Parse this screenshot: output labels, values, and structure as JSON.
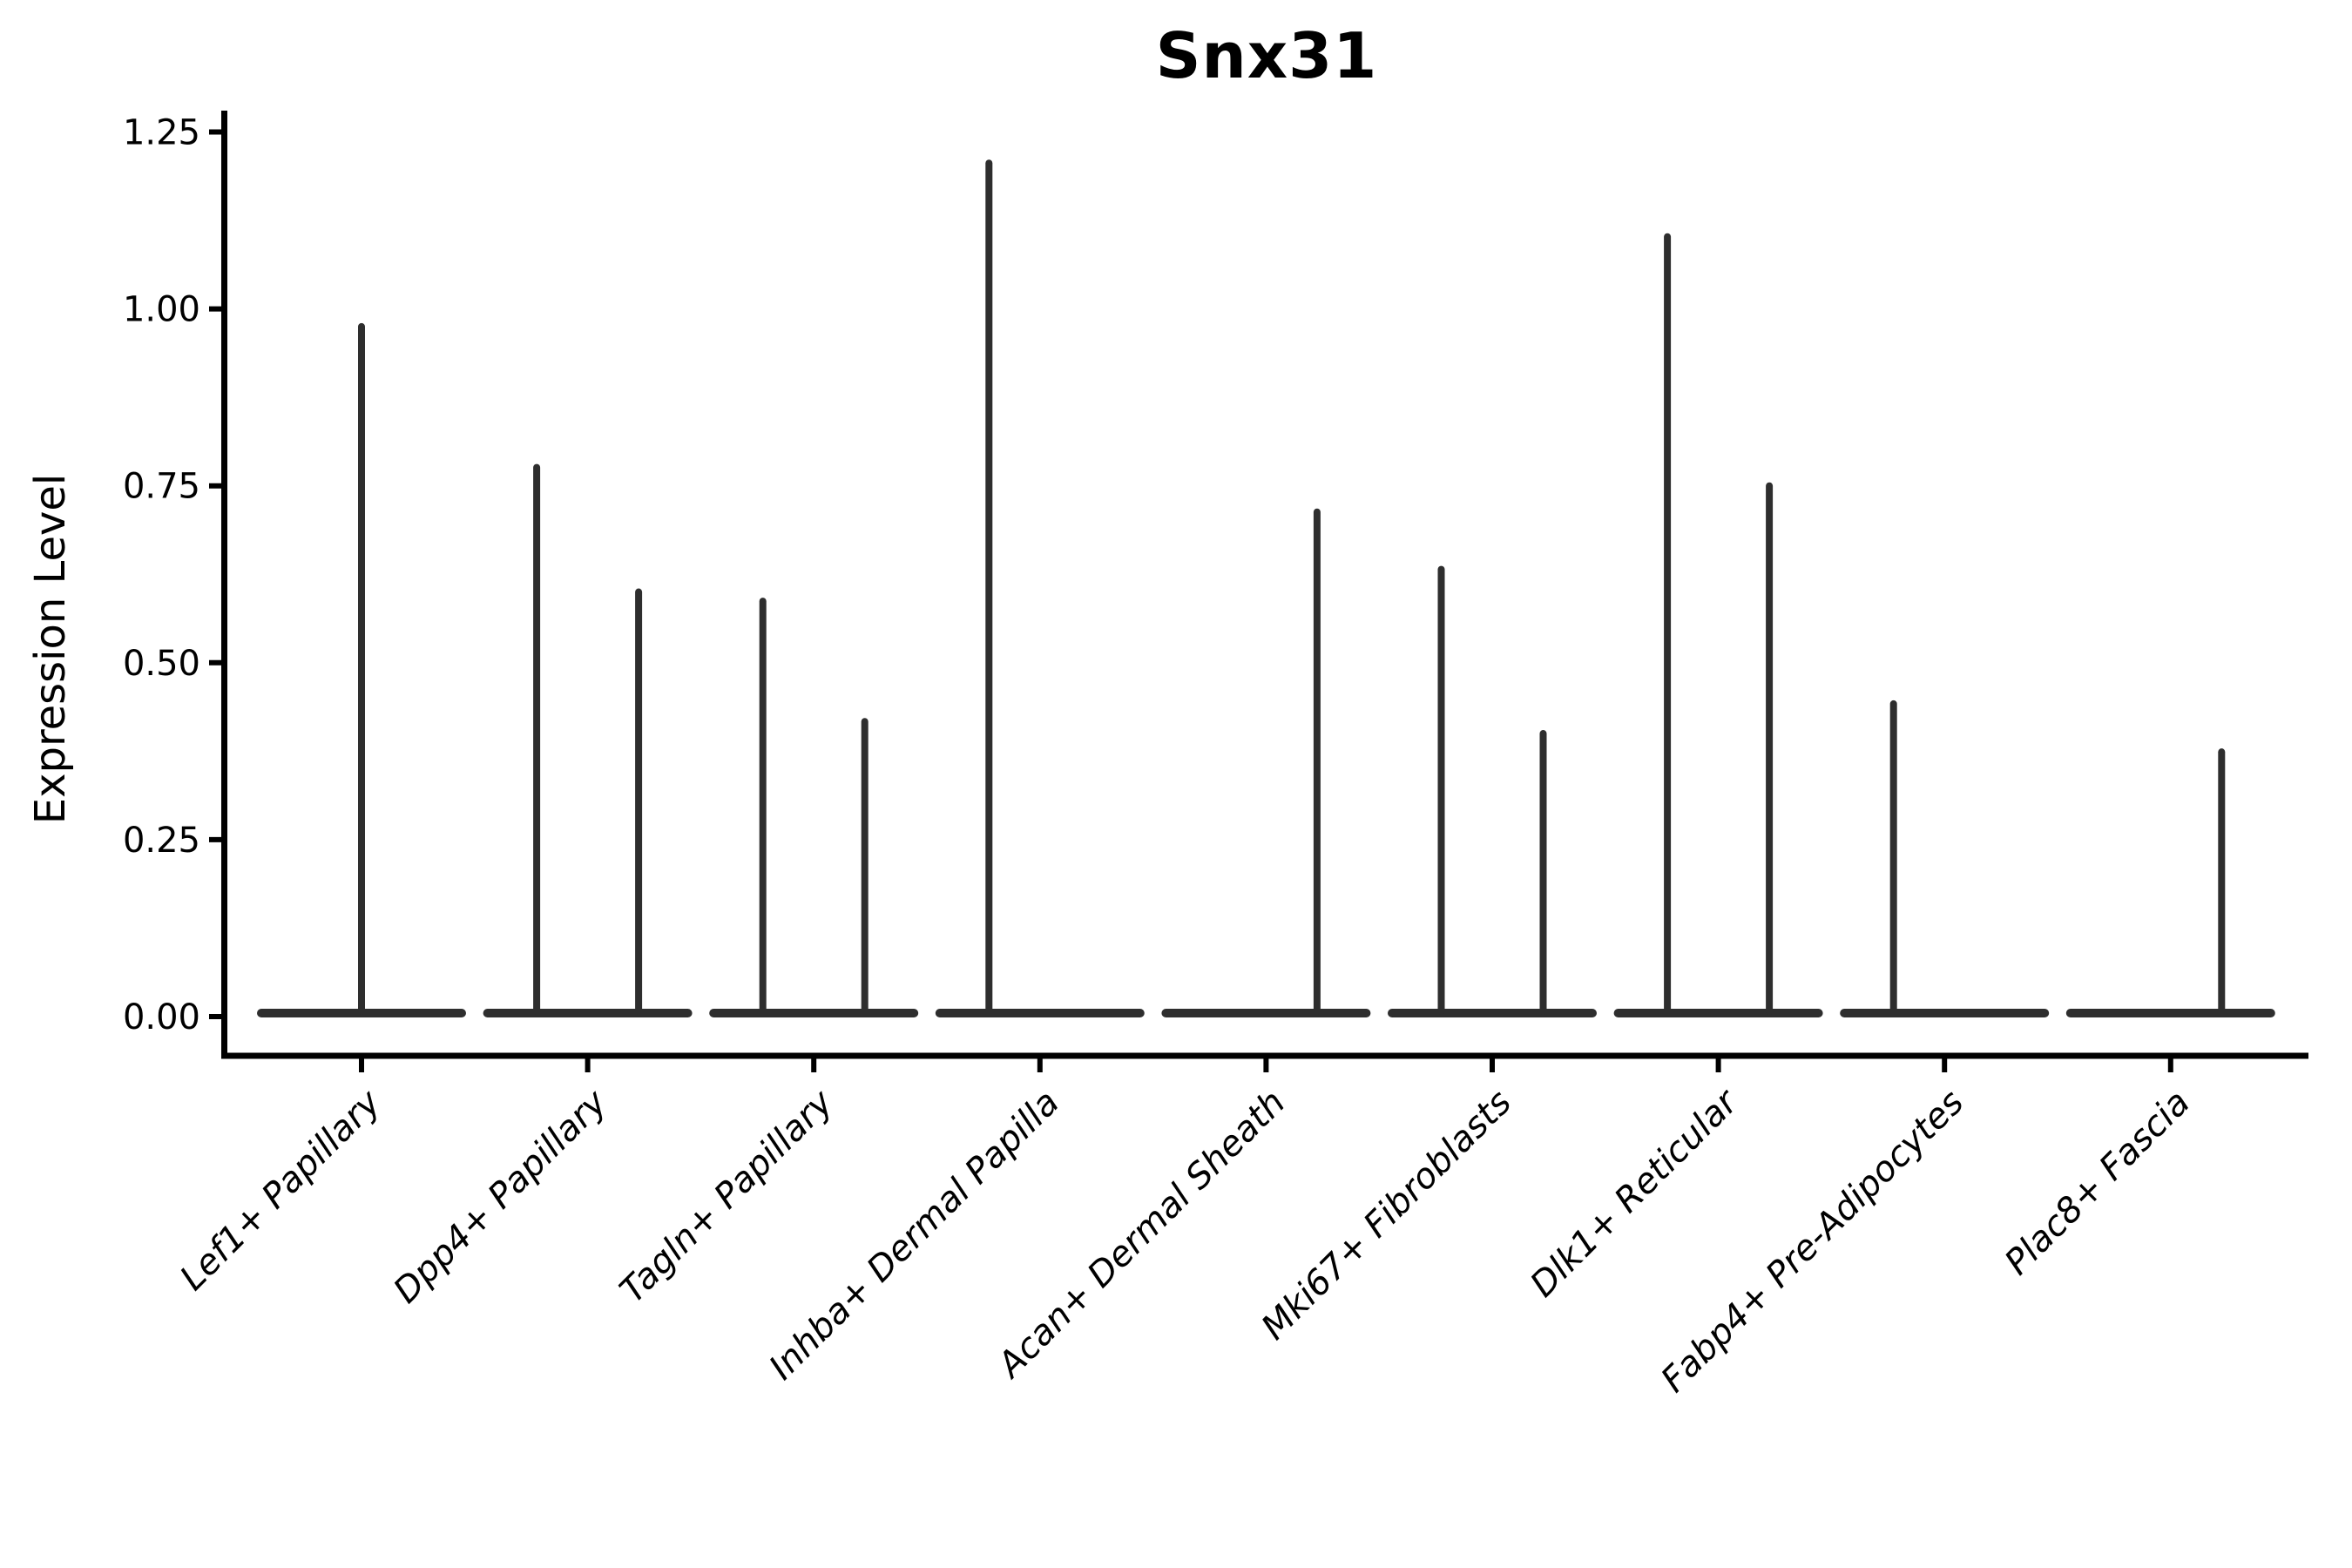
{
  "figure": {
    "background": "#ffffff",
    "violin_color": "#2e2e2e",
    "axis_color": "#000000"
  },
  "chart_data": {
    "type": "violin",
    "title": "Snx31",
    "xlabel": "",
    "ylabel": "Expression Level",
    "ylim": [
      -0.055,
      1.28
    ],
    "grid": false,
    "legend": null,
    "y_ticks": [
      "0.00",
      "0.25",
      "0.50",
      "0.75",
      "1.00",
      "1.25"
    ],
    "y_tick_values": [
      0.0,
      0.25,
      0.5,
      0.75,
      1.0,
      1.25
    ],
    "categories": [
      "Lef1+ Papillary",
      "Dpp4+ Papillary",
      "Tagln+ Papillary",
      "Inhba+ Dermal Papilla",
      "Acan+ Dermal Sheath",
      "Mki67+ Fibroblasts",
      "Dlk1+ Reticular",
      "Fabp4+ Pre-Adipocytes",
      "Plac8+ Fascia"
    ],
    "baseline_value": 0.0,
    "violins": [
      {
        "category": "Lef1+ Papillary",
        "spikes": [
          {
            "position": "center",
            "max": 0.975
          }
        ]
      },
      {
        "category": "Dpp4+ Papillary",
        "spikes": [
          {
            "position": "left",
            "max": 0.776
          },
          {
            "position": "right",
            "max": 0.6
          }
        ]
      },
      {
        "category": "Tagln+ Papillary",
        "spikes": [
          {
            "position": "left",
            "max": 0.587
          },
          {
            "position": "right",
            "max": 0.417
          }
        ]
      },
      {
        "category": "Inhba+ Dermal Papilla",
        "spikes": [
          {
            "position": "left",
            "max": 1.206
          }
        ]
      },
      {
        "category": "Acan+ Dermal Sheath",
        "spikes": [
          {
            "position": "right",
            "max": 0.713
          }
        ]
      },
      {
        "category": "Mki67+ Fibroblasts",
        "spikes": [
          {
            "position": "left",
            "max": 0.632
          },
          {
            "position": "right",
            "max": 0.4
          }
        ]
      },
      {
        "category": "Dlk1+ Reticular",
        "spikes": [
          {
            "position": "left",
            "max": 1.102
          },
          {
            "position": "right",
            "max": 0.75
          }
        ]
      },
      {
        "category": "Fabp4+ Pre-Adipocytes",
        "spikes": [
          {
            "position": "left",
            "max": 0.442
          }
        ]
      },
      {
        "category": "Plac8+ Fascia",
        "spikes": [
          {
            "position": "right",
            "max": 0.374
          }
        ]
      }
    ]
  }
}
